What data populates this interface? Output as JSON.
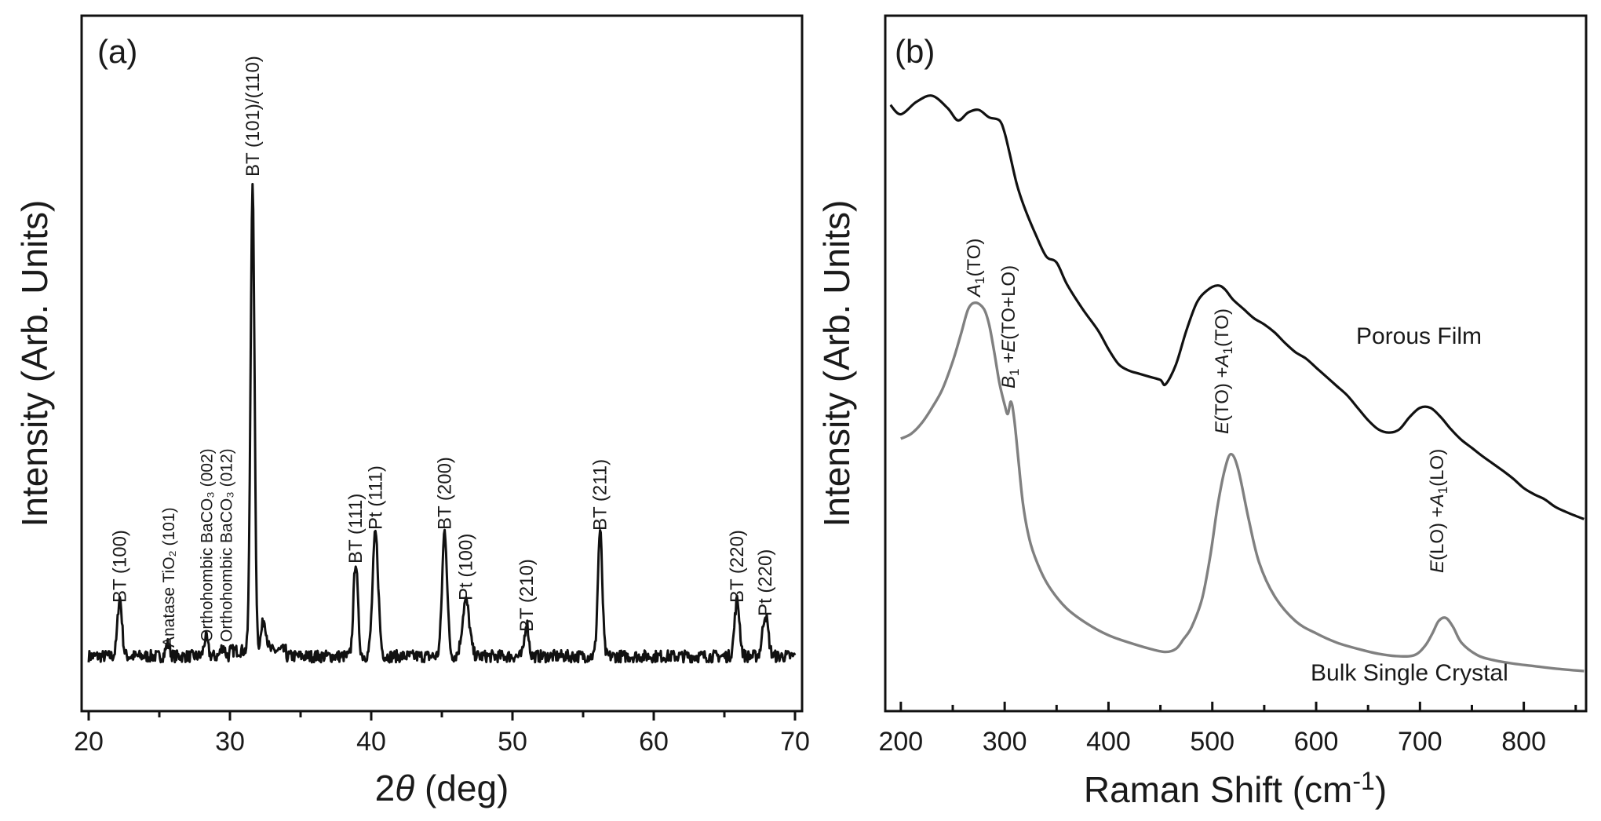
{
  "chart_data": [
    {
      "type": "line",
      "panel_label": "(a)",
      "xlabel": "2θ (deg)",
      "xlabel_parts": {
        "symbol": "2",
        "theta": "θ",
        "unit": " (deg)"
      },
      "ylabel": "Intensity (Arb. Units)",
      "xlim": [
        19.5,
        70.5
      ],
      "xticks": [
        20,
        30,
        40,
        50,
        60,
        70
      ],
      "xtick_labels": [
        "20",
        "30",
        "40",
        "50",
        "60",
        "70"
      ],
      "yticks": [],
      "peaks": [
        {
          "x": 22.2,
          "height": 0.105,
          "width": 0.22
        },
        {
          "x": 25.6,
          "height": 0.022,
          "width": 0.2
        },
        {
          "x": 28.3,
          "height": 0.033,
          "width": 0.2
        },
        {
          "x": 29.5,
          "height": 0.018,
          "width": 0.2
        },
        {
          "x": 31.6,
          "height": 0.83,
          "width": 0.2
        },
        {
          "x": 32.4,
          "height": 0.055,
          "width": 0.25
        },
        {
          "x": 38.9,
          "height": 0.17,
          "width": 0.22
        },
        {
          "x": 40.3,
          "height": 0.22,
          "width": 0.28
        },
        {
          "x": 45.2,
          "height": 0.225,
          "width": 0.25
        },
        {
          "x": 46.7,
          "height": 0.1,
          "width": 0.35
        },
        {
          "x": 51.0,
          "height": 0.06,
          "width": 0.2
        },
        {
          "x": 56.2,
          "height": 0.225,
          "width": 0.22
        },
        {
          "x": 65.9,
          "height": 0.1,
          "width": 0.25
        },
        {
          "x": 67.9,
          "height": 0.075,
          "width": 0.28
        }
      ],
      "baseline": 0.028,
      "annotations": [
        {
          "text": "BT (100)",
          "x": 22.2
        },
        {
          "text": "Anatase TiO₂ (101)",
          "x": 25.6
        },
        {
          "text": "Orthohombic BaCO₃ (002)",
          "x": 28.3
        },
        {
          "text": "Orthohombic BaCO₃ (012)",
          "x": 29.7
        },
        {
          "text": "BT (101)/(110)",
          "x": 31.6
        },
        {
          "text": "BT (111)",
          "x": 38.9
        },
        {
          "text": "Pt (111)",
          "x": 40.3
        },
        {
          "text": "BT (200)",
          "x": 45.2
        },
        {
          "text": "Pt (100)",
          "x": 46.7
        },
        {
          "text": "BT (210)",
          "x": 51.0
        },
        {
          "text": "BT (211)",
          "x": 56.2
        },
        {
          "text": "BT (220)",
          "x": 65.9
        },
        {
          "text": "Pt (220)",
          "x": 67.9
        }
      ]
    },
    {
      "type": "line",
      "panel_label": "(b)",
      "xlabel": "Raman Shift (cm-1)",
      "xlabel_parts": {
        "base": "Raman Shift (cm",
        "sup": "-1",
        "close": ")"
      },
      "ylabel": "Intensity (Arb. Units)",
      "xlim": [
        185,
        860
      ],
      "xticks": [
        200,
        300,
        400,
        500,
        600,
        700,
        800
      ],
      "xtick_labels": [
        "200",
        "300",
        "400",
        "500",
        "600",
        "700",
        "800"
      ],
      "minor_xticks": [
        250,
        350,
        450,
        550,
        650,
        750,
        850
      ],
      "series": [
        {
          "name": "Porous Film",
          "color": "#111111",
          "x": [
            190,
            200,
            215,
            230,
            245,
            255,
            265,
            275,
            285,
            295,
            300,
            305,
            312,
            320,
            330,
            340,
            350,
            360,
            375,
            390,
            400,
            410,
            420,
            430,
            440,
            450,
            455,
            465,
            475,
            485,
            495,
            505,
            512,
            520,
            530,
            540,
            550,
            560,
            570,
            580,
            590,
            600,
            610,
            620,
            630,
            640,
            650,
            660,
            670,
            680,
            690,
            700,
            710,
            720,
            730,
            740,
            750,
            760,
            770,
            780,
            790,
            800,
            810,
            820,
            830,
            840,
            850,
            858
          ],
          "y": [
            0.93,
            0.915,
            0.935,
            0.945,
            0.925,
            0.905,
            0.918,
            0.922,
            0.91,
            0.905,
            0.885,
            0.85,
            0.8,
            0.76,
            0.72,
            0.685,
            0.675,
            0.64,
            0.6,
            0.565,
            0.535,
            0.51,
            0.5,
            0.495,
            0.49,
            0.485,
            0.478,
            0.51,
            0.565,
            0.61,
            0.63,
            0.638,
            0.632,
            0.615,
            0.6,
            0.585,
            0.575,
            0.562,
            0.545,
            0.53,
            0.52,
            0.505,
            0.49,
            0.475,
            0.46,
            0.44,
            0.42,
            0.405,
            0.4,
            0.405,
            0.425,
            0.44,
            0.44,
            0.425,
            0.405,
            0.388,
            0.375,
            0.362,
            0.35,
            0.338,
            0.325,
            0.31,
            0.3,
            0.292,
            0.28,
            0.272,
            0.265,
            0.26
          ]
        },
        {
          "name": "Bulk Single Crystal",
          "color": "#808080",
          "x": [
            200,
            210,
            220,
            230,
            240,
            250,
            258,
            265,
            272,
            280,
            285,
            290,
            295,
            300,
            303,
            306,
            309,
            313,
            318,
            325,
            335,
            345,
            360,
            380,
            400,
            420,
            440,
            455,
            465,
            472,
            480,
            490,
            498,
            505,
            512,
            518,
            525,
            535,
            545,
            560,
            580,
            600,
            620,
            640,
            660,
            680,
            695,
            705,
            712,
            718,
            725,
            732,
            740,
            755,
            770,
            790,
            810,
            830,
            858
          ],
          "y": [
            0.39,
            0.398,
            0.415,
            0.44,
            0.47,
            0.515,
            0.56,
            0.6,
            0.61,
            0.6,
            0.575,
            0.53,
            0.48,
            0.445,
            0.43,
            0.45,
            0.425,
            0.36,
            0.28,
            0.22,
            0.175,
            0.145,
            0.115,
            0.09,
            0.072,
            0.06,
            0.05,
            0.045,
            0.05,
            0.065,
            0.085,
            0.13,
            0.2,
            0.28,
            0.34,
            0.365,
            0.34,
            0.26,
            0.19,
            0.135,
            0.095,
            0.075,
            0.06,
            0.05,
            0.042,
            0.038,
            0.04,
            0.055,
            0.075,
            0.095,
            0.1,
            0.085,
            0.06,
            0.04,
            0.032,
            0.026,
            0.022,
            0.018,
            0.014
          ]
        }
      ],
      "annotations": [
        {
          "id": "a1to",
          "text": "A1(TO)",
          "x": 273
        },
        {
          "id": "b1e",
          "text": "B1 +E(TO+LO)",
          "x": 306
        },
        {
          "id": "eto",
          "text": "E(TO) +A1(TO)",
          "x": 513
        },
        {
          "id": "elo",
          "text": "E(LO) +A1(LO)",
          "x": 718
        }
      ],
      "annotation_parts": {
        "a1to": {
          "i1": "A",
          "s1": "1",
          "t1": "(TO)"
        },
        "b1e": {
          "i1": "B",
          "s1": "1",
          "t1": " +",
          "i2": "E",
          "t2": "(TO+LO)"
        },
        "eto": {
          "i1": "E",
          "t1": "(TO) +",
          "i2": "A",
          "s2": "1",
          "t2": "(TO)"
        },
        "elo": {
          "i1": "E",
          "t1": "(LO) +",
          "i2": "A",
          "s2": "1",
          "t2": "(LO)"
        }
      },
      "series_labels": {
        "film": "Porous Film",
        "crystal": "Bulk Single Crystal"
      }
    }
  ]
}
